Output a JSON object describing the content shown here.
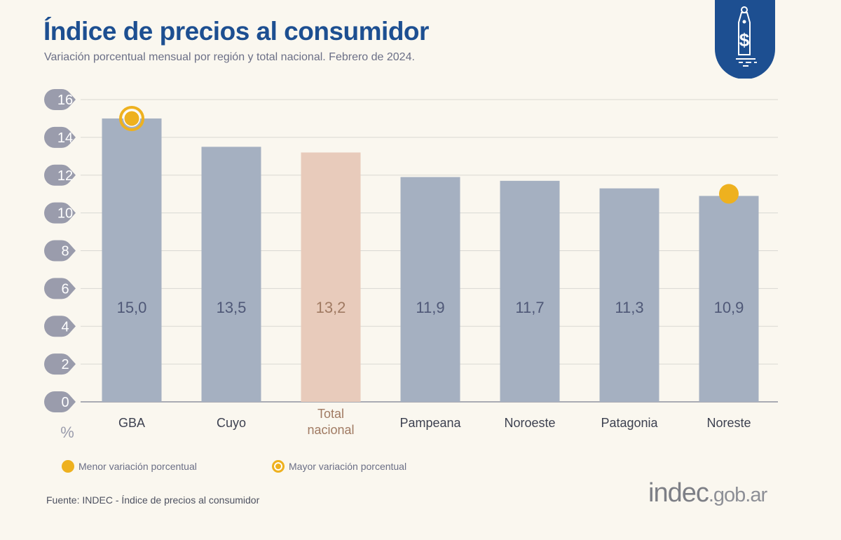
{
  "header": {
    "title": "Índice de precios al consumidor",
    "subtitle": "Variación porcentual mensual por región y total nacional. Febrero de 2024."
  },
  "badge": {
    "icon": "price-tag-dollar-icon",
    "color": "#1d4f91"
  },
  "chart_data": {
    "type": "bar",
    "categories": [
      "GBA",
      "Cuyo",
      "Total nacional",
      "Pampeana",
      "Noroeste",
      "Patagonia",
      "Noreste"
    ],
    "category_lines": [
      [
        "GBA"
      ],
      [
        "Cuyo"
      ],
      [
        "Total",
        "nacional"
      ],
      [
        "Pampeana"
      ],
      [
        "Noroeste"
      ],
      [
        "Patagonia"
      ],
      [
        "Noreste"
      ]
    ],
    "values": [
      15.0,
      13.5,
      13.2,
      11.9,
      11.7,
      11.3,
      10.9
    ],
    "value_labels": [
      "15,0",
      "13,5",
      "13,2",
      "11,9",
      "11,7",
      "11,3",
      "10,9"
    ],
    "ylabel": "%",
    "ylim": [
      0,
      16
    ],
    "yticks": [
      0,
      2,
      4,
      6,
      8,
      10,
      12,
      14,
      16
    ],
    "grid": true,
    "colors": {
      "bar": "#a5b0c1",
      "highlight": "#e8cbbb",
      "marker": "#eeb11f",
      "label": "#4f5877",
      "highlight_label": "#a07a62"
    },
    "highlight_category": "Total nacional",
    "markers": [
      {
        "category": "GBA",
        "type": "max"
      },
      {
        "category": "Noreste",
        "type": "min"
      }
    ]
  },
  "legend": {
    "min_label": "Menor variación porcentual",
    "max_label": "Mayor variación porcentual"
  },
  "footer": {
    "source": "Fuente: INDEC - Índice de precios al consumidor",
    "logo_main": "indec",
    "logo_suffix": ".gob.ar"
  }
}
